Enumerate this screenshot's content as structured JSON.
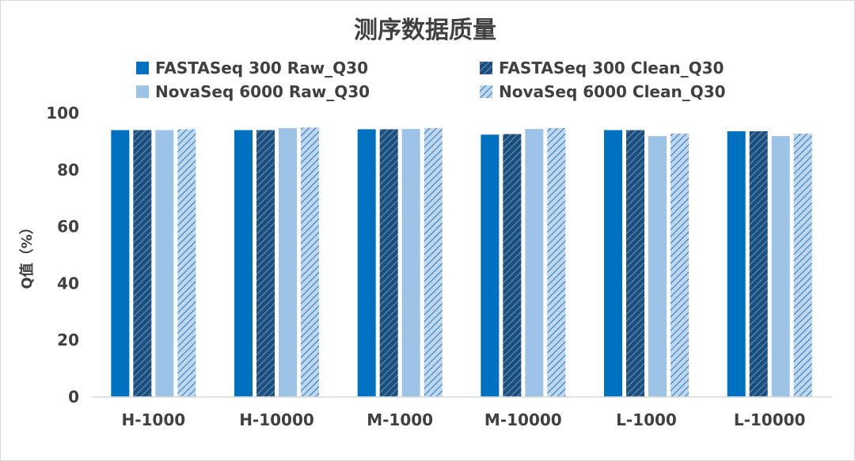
{
  "chart_data": {
    "type": "bar",
    "title": "测序数据质量",
    "ylabel": "Q值（%）",
    "xlabel": "",
    "ylim": [
      0,
      100
    ],
    "yticks": [
      0,
      20,
      40,
      60,
      80,
      100
    ],
    "grid": false,
    "legend_position": "top",
    "categories": [
      "H-1000",
      "H-10000",
      "M-1000",
      "M-10000",
      "L-1000",
      "L-10000"
    ],
    "series": [
      {
        "name": "FASTASeq 300 Raw_Q30",
        "color": "#0070c0",
        "pattern": "solid",
        "values": [
          94.0,
          94.0,
          94.3,
          92.4,
          94.0,
          93.6
        ]
      },
      {
        "name": "FASTASeq 300 Clean_Q30",
        "color": "#1f5f96",
        "pattern": "hatched-dark",
        "values": [
          94.0,
          94.0,
          94.3,
          92.6,
          94.0,
          93.6
        ]
      },
      {
        "name": "NovaSeq 6000 Raw_Q30",
        "color": "#9dc3e6",
        "pattern": "solid",
        "values": [
          94.0,
          94.7,
          94.4,
          94.4,
          91.9,
          91.9
        ]
      },
      {
        "name": "NovaSeq 6000 Clean_Q30",
        "color": "#4f92d0",
        "pattern": "hatched-light",
        "values": [
          94.3,
          94.9,
          94.7,
          94.7,
          92.8,
          92.8
        ]
      }
    ]
  }
}
